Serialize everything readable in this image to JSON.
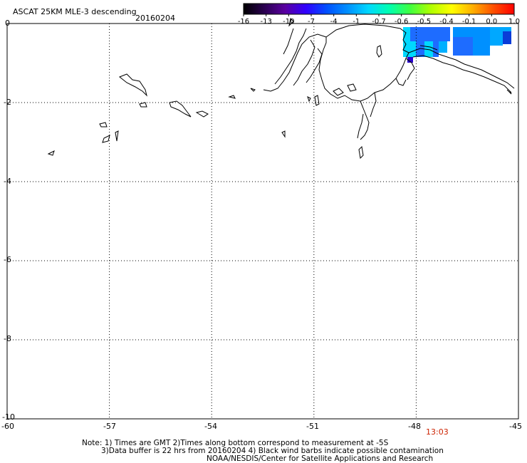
{
  "header": {
    "title": "ASCAT 25KM MLE-3 descending",
    "date": "20160204"
  },
  "colorbar": {
    "labels": [
      "-16",
      "-13",
      "-10",
      "-7",
      "-4",
      "-1",
      "-0.7",
      "-0.6",
      "-0.5",
      "-0.4",
      "-0.1",
      "0.0",
      "1.0"
    ],
    "colors": [
      "#000000",
      "#2a0050",
      "#5a00a0",
      "#3000ff",
      "#0050ff",
      "#0090ff",
      "#00d8ff",
      "#00ffb0",
      "#40ff40",
      "#b0ff00",
      "#ffff00",
      "#ffb000",
      "#ff5000",
      "#ff0000"
    ]
  },
  "axes": {
    "y_labels": [
      "0",
      "-2",
      "-4",
      "-6",
      "-8",
      "-10"
    ],
    "x_labels": [
      "-60",
      "-57",
      "-54",
      "-51",
      "-48",
      "-45"
    ],
    "x_range": [
      -60,
      -45
    ],
    "y_range": [
      -10,
      0
    ],
    "grid": true
  },
  "time_label": "13:03",
  "time_color": "#cc2200",
  "notes": {
    "line1": "Note: 1) Times are GMT 2)Times along bottom correspond to measurement at -5S",
    "line2": "3)Data buffer is 22 hrs from 20160204 4) Black wind barbs indicate possible contamination",
    "line3": "NOAA/NESDIS/Center for Satellite Applications and Research"
  }
}
